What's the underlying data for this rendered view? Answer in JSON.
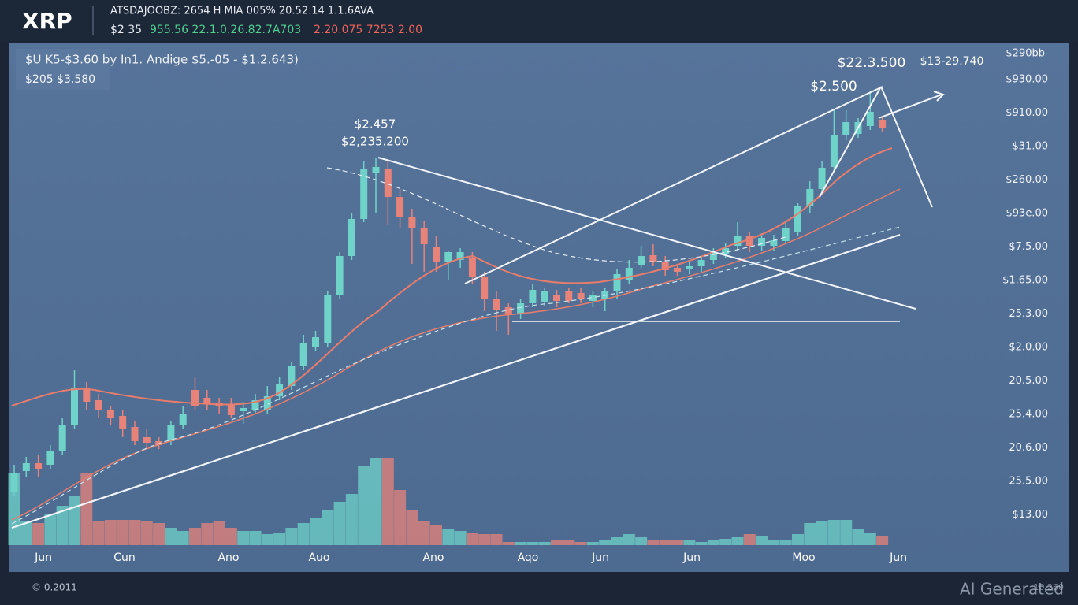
{
  "header": {
    "symbol": "XRP",
    "ticker_line": "ATSDAJOOBZ: 2654 H MIA 005% 20.52.14 1.1.6AVA",
    "price_white": "$2 35",
    "price_green": "955.56 22.1.0.26.82.7A703",
    "price_red": "2.20.075 7253 2.00"
  },
  "panel": {
    "info_line_1": "$U K5-$3.60  by  In1.  Andige  $5.-05 - $1.2.643)",
    "info_line_2": "$205   $3.580",
    "annotations": [
      "$2.457",
      "$2,235.200",
      "$22.3.500",
      "$13-29.740",
      "$2.500"
    ],
    "y_labels": [
      "$290bb",
      "$930.00",
      "$910.00",
      "$31.00",
      "$260.00",
      "$93e.00",
      "$7.5.00",
      "$1.65.00",
      "25.3.00",
      "$2.0.00",
      "20.5.00",
      "25.4.00",
      "20.6.00",
      "25.5.00",
      "$13.00"
    ],
    "x_labels": [
      "Jun",
      "Cun",
      "Ano",
      "Auo",
      "Ano",
      "Aqo",
      "Jun",
      "Jun",
      "Moo",
      "Jun"
    ]
  },
  "footer": {
    "left": "© 0.2011",
    "watermark": "AI Generated",
    "right": "10.260"
  },
  "chart_data": {
    "type": "candlestick",
    "ylim": [
      0,
      630
    ],
    "volume_lim": [
      0,
      630
    ],
    "up_color": "#6fd3c9",
    "down_color": "#e8837a",
    "open": [
      65,
      92,
      102,
      100,
      118,
      150,
      197,
      182,
      170,
      162,
      148,
      135,
      130,
      130,
      150,
      195,
      185,
      178,
      177,
      168,
      170,
      170,
      187,
      200,
      225,
      250,
      255,
      315,
      365,
      412,
      470,
      475,
      440,
      415,
      400,
      377,
      357,
      360,
      362,
      338,
      310,
      300,
      292,
      305,
      307,
      315,
      320,
      318,
      308,
      310,
      320,
      335,
      354,
      366,
      358,
      350,
      348,
      352,
      360,
      368,
      378,
      390,
      378,
      378,
      384,
      395,
      428,
      450,
      478,
      518,
      520,
      530,
      538
    ],
    "close": [
      90,
      102,
      95,
      118,
      150,
      198,
      180,
      170,
      160,
      145,
      130,
      128,
      125,
      150,
      165,
      175,
      178,
      175,
      163,
      172,
      182,
      187,
      202,
      225,
      255,
      262,
      315,
      365,
      412,
      475,
      478,
      440,
      415,
      400,
      380,
      357,
      370,
      370,
      338,
      310,
      297,
      292,
      305,
      322,
      320,
      308,
      308,
      310,
      315,
      320,
      342,
      350,
      365,
      358,
      347,
      345,
      352,
      360,
      370,
      375,
      390,
      378,
      388,
      385,
      400,
      428,
      450,
      477,
      518,
      535,
      535,
      548,
      528
    ],
    "high": [
      100,
      110,
      112,
      125,
      160,
      220,
      205,
      190,
      175,
      170,
      155,
      145,
      135,
      155,
      175,
      212,
      195,
      185,
      185,
      180,
      190,
      200,
      212,
      230,
      265,
      270,
      320,
      370,
      420,
      485,
      490,
      485,
      450,
      425,
      410,
      390,
      372,
      375,
      370,
      345,
      320,
      305,
      310,
      330,
      325,
      322,
      325,
      325,
      320,
      325,
      348,
      360,
      378,
      380,
      365,
      355,
      360,
      365,
      375,
      382,
      408,
      395,
      394,
      392,
      408,
      432,
      460,
      485,
      550,
      550,
      540,
      575,
      542
    ],
    "low": [
      60,
      85,
      85,
      95,
      112,
      145,
      170,
      160,
      150,
      135,
      125,
      120,
      120,
      125,
      145,
      170,
      170,
      165,
      160,
      152,
      165,
      165,
      182,
      195,
      220,
      245,
      250,
      310,
      360,
      408,
      420,
      405,
      400,
      355,
      345,
      345,
      335,
      350,
      330,
      295,
      270,
      265,
      285,
      300,
      302,
      300,
      305,
      305,
      300,
      295,
      310,
      330,
      350,
      352,
      340,
      340,
      342,
      345,
      355,
      362,
      372,
      370,
      372,
      372,
      380,
      390,
      420,
      445,
      472,
      512,
      515,
      525,
      522
    ],
    "volume": [
      92,
      30,
      28,
      40,
      50,
      62,
      92,
      30,
      32,
      32,
      32,
      30,
      28,
      22,
      18,
      22,
      28,
      30,
      22,
      18,
      18,
      14,
      16,
      22,
      28,
      35,
      45,
      55,
      65,
      100,
      110,
      110,
      70,
      45,
      30,
      25,
      20,
      18,
      16,
      14,
      14,
      4,
      4,
      4,
      4,
      6,
      6,
      4,
      4,
      6,
      10,
      14,
      10,
      6,
      6,
      6,
      6,
      4,
      6,
      8,
      10,
      14,
      12,
      6,
      6,
      14,
      28,
      30,
      32,
      32,
      20,
      15,
      12
    ]
  }
}
